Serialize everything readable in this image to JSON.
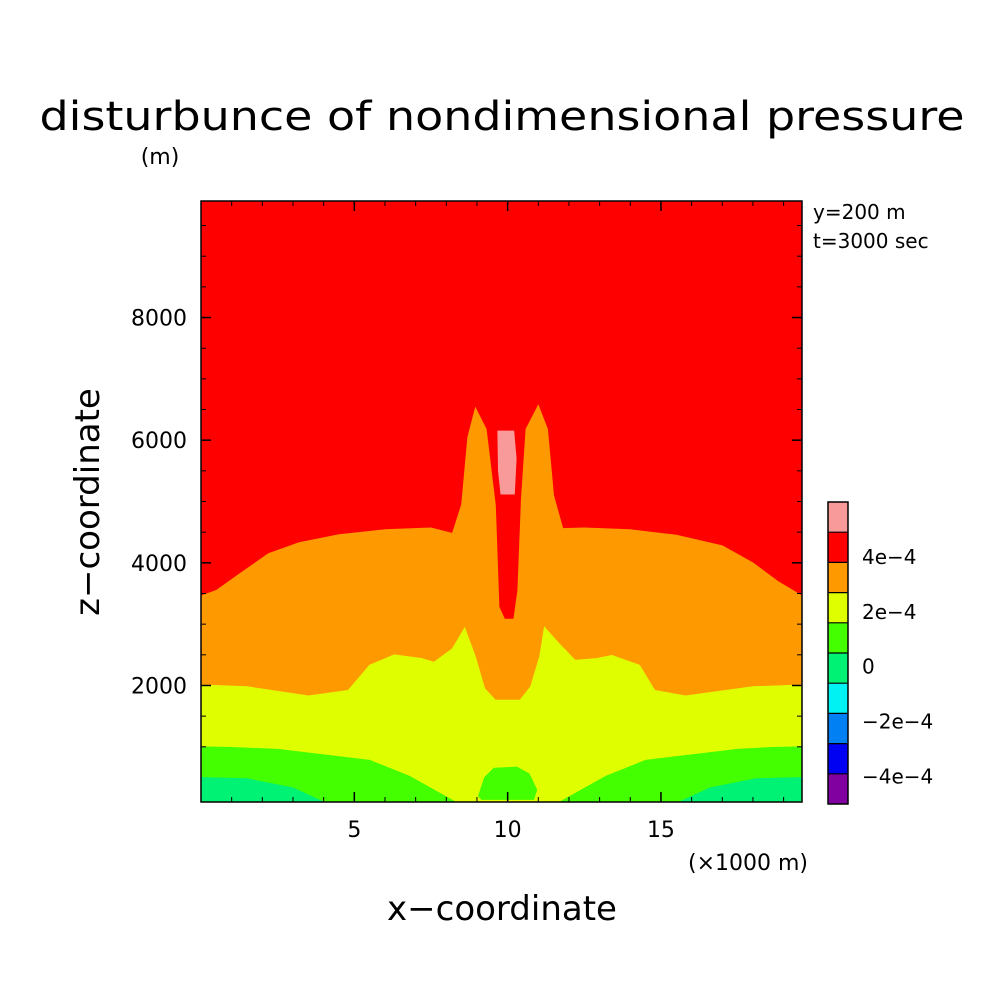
{
  "chart_data": {
    "type": "contour",
    "title": "disturbunce of nondimensional pressure",
    "y_unit": "(m)",
    "x_unit": "(×1000 m)",
    "xlabel": "x−coordinate",
    "ylabel": "z−coordinate",
    "annotations": [
      "y=200 m",
      "t=3000 sec"
    ],
    "xlim": [
      0,
      19.6
    ],
    "ylim": [
      100,
      9900
    ],
    "x_ticks": [
      5,
      10,
      15
    ],
    "y_ticks": [
      2000,
      4000,
      6000,
      8000
    ],
    "x_tick_labels": [
      "5",
      "10",
      "15"
    ],
    "y_tick_labels": [
      "2000",
      "4000",
      "6000",
      "8000"
    ],
    "colorbar": {
      "labels": [
        "4e−4",
        "2e−4",
        "0",
        "−2e−4",
        "−4e−4"
      ],
      "label_values": [
        0.0004,
        0.0002,
        0,
        -0.0002,
        -0.0004
      ],
      "levels": [
        {
          "lower": 0.0005,
          "color": "#f99a9a"
        },
        {
          "lower": 0.0003,
          "color": "#ff0000"
        },
        {
          "lower": 0.0002,
          "color": "#ff9900"
        },
        {
          "lower": 0.0001,
          "color": "#dfff00"
        },
        {
          "lower": 0.0,
          "color": "#44ff00"
        },
        {
          "lower": -0.0001,
          "color": "#00f275"
        },
        {
          "lower": -0.0002,
          "color": "#00f2f2"
        },
        {
          "lower": -0.0003,
          "color": "#0080f2"
        },
        {
          "lower": -0.0004,
          "color": "#0000f2"
        },
        {
          "lower": -0.0005,
          "color": "#8000a0"
        }
      ]
    },
    "contour_bands": [
      {
        "name": "band-red",
        "color": "#ff0000",
        "upper_outline": [
          [
            0,
            9900
          ],
          [
            19.6,
            9900
          ]
        ]
      },
      {
        "name": "band-orange",
        "color": "#ff9900",
        "upper_outline": [
          [
            0,
            3460
          ],
          [
            0.5,
            3550
          ],
          [
            1.2,
            3800
          ],
          [
            2.2,
            4150
          ],
          [
            3.2,
            4330
          ],
          [
            4.5,
            4460
          ],
          [
            6,
            4540
          ],
          [
            7.5,
            4570
          ],
          [
            8.2,
            4480
          ],
          [
            8.5,
            4950
          ],
          [
            8.7,
            6050
          ],
          [
            8.95,
            6530
          ],
          [
            9.3,
            6180
          ],
          [
            9.6,
            4940
          ],
          [
            9.72,
            3280
          ],
          [
            9.9,
            3080
          ],
          [
            10.2,
            3080
          ],
          [
            10.33,
            3550
          ],
          [
            10.45,
            5050
          ],
          [
            10.6,
            6180
          ],
          [
            11.0,
            6570
          ],
          [
            11.3,
            6180
          ],
          [
            11.5,
            5100
          ],
          [
            11.8,
            4560
          ],
          [
            12.5,
            4570
          ],
          [
            14,
            4540
          ],
          [
            15.5,
            4450
          ],
          [
            17,
            4280
          ],
          [
            18,
            4000
          ],
          [
            18.8,
            3700
          ],
          [
            19.6,
            3460
          ]
        ]
      },
      {
        "name": "band-yellow",
        "color": "#dfff00",
        "upper_outline": [
          [
            0,
            2010
          ],
          [
            1.5,
            1980
          ],
          [
            3.5,
            1830
          ],
          [
            4.8,
            1920
          ],
          [
            5.5,
            2330
          ],
          [
            6.3,
            2500
          ],
          [
            7.2,
            2440
          ],
          [
            7.6,
            2380
          ],
          [
            8.2,
            2600
          ],
          [
            8.6,
            2940
          ],
          [
            8.95,
            2470
          ],
          [
            9.25,
            1950
          ],
          [
            9.6,
            1760
          ],
          [
            10.4,
            1760
          ],
          [
            10.75,
            1980
          ],
          [
            11.05,
            2480
          ],
          [
            11.2,
            2950
          ],
          [
            11.65,
            2700
          ],
          [
            12.2,
            2410
          ],
          [
            12.9,
            2440
          ],
          [
            13.4,
            2490
          ],
          [
            14.3,
            2330
          ],
          [
            14.8,
            1920
          ],
          [
            15.8,
            1830
          ],
          [
            18,
            1980
          ],
          [
            19.6,
            2010
          ]
        ]
      },
      {
        "name": "band-green",
        "color": "#44ff00",
        "upper_outline": [
          [
            0,
            1000
          ],
          [
            1,
            990
          ],
          [
            2.5,
            960
          ],
          [
            4,
            870
          ],
          [
            5.5,
            780
          ],
          [
            6.8,
            520
          ],
          [
            8.3,
            100
          ],
          [
            11.7,
            100
          ],
          [
            13.2,
            520
          ],
          [
            14.5,
            780
          ],
          [
            16,
            870
          ],
          [
            17.5,
            960
          ],
          [
            18.6,
            990
          ],
          [
            19.6,
            1000
          ]
        ]
      },
      {
        "name": "band-spring",
        "color": "#00f275",
        "upper_outline": [
          [
            0,
            500
          ],
          [
            1.5,
            480
          ],
          [
            3,
            330
          ],
          [
            4,
            100
          ],
          [
            15.6,
            100
          ],
          [
            16.6,
            330
          ],
          [
            18.1,
            480
          ],
          [
            19.6,
            500
          ]
        ]
      }
    ],
    "contour_cells": [
      {
        "name": "cell-green-bottom",
        "color": "#44ff00",
        "outline": [
          [
            9.05,
            200
          ],
          [
            9.25,
            500
          ],
          [
            9.55,
            650
          ],
          [
            10.3,
            670
          ],
          [
            10.7,
            560
          ],
          [
            10.95,
            300
          ],
          [
            10.85,
            140
          ],
          [
            9.15,
            140
          ]
        ]
      },
      {
        "name": "cell-pink",
        "color": "#f99a9a",
        "outline": [
          [
            9.68,
            6150
          ],
          [
            10.2,
            6150
          ],
          [
            10.28,
            5700
          ],
          [
            10.22,
            5120
          ],
          [
            9.78,
            5120
          ],
          [
            9.7,
            5500
          ]
        ]
      }
    ]
  }
}
